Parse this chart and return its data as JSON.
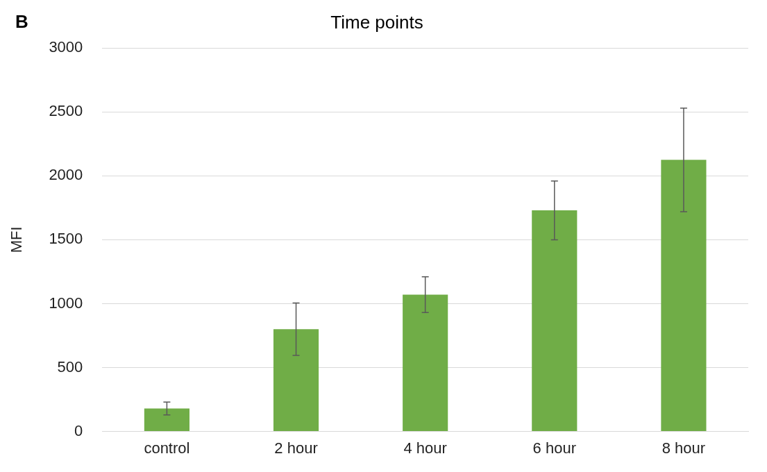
{
  "chart_data": {
    "type": "bar",
    "title": "Time points",
    "ylabel": "MFI",
    "annotations": [
      "B"
    ],
    "categories": [
      "control",
      "2 hour",
      "4 hour",
      "6 hour",
      "8 hour"
    ],
    "values": [
      180,
      800,
      1070,
      1730,
      2125
    ],
    "errors": [
      50,
      205,
      140,
      230,
      405
    ],
    "color": "#70ad47",
    "ylim": [
      0,
      3000
    ],
    "yticks": [
      0,
      500,
      1000,
      1500,
      2000,
      2500,
      3000
    ],
    "grid": "y",
    "legend": false
  }
}
